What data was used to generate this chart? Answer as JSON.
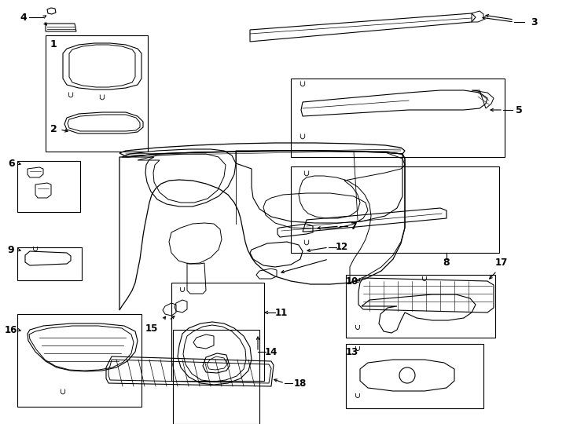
{
  "bg_color": "#ffffff",
  "line_color": "#000000",
  "lw": 0.8,
  "fig_w": 7.34,
  "fig_h": 5.4,
  "dpi": 100
}
